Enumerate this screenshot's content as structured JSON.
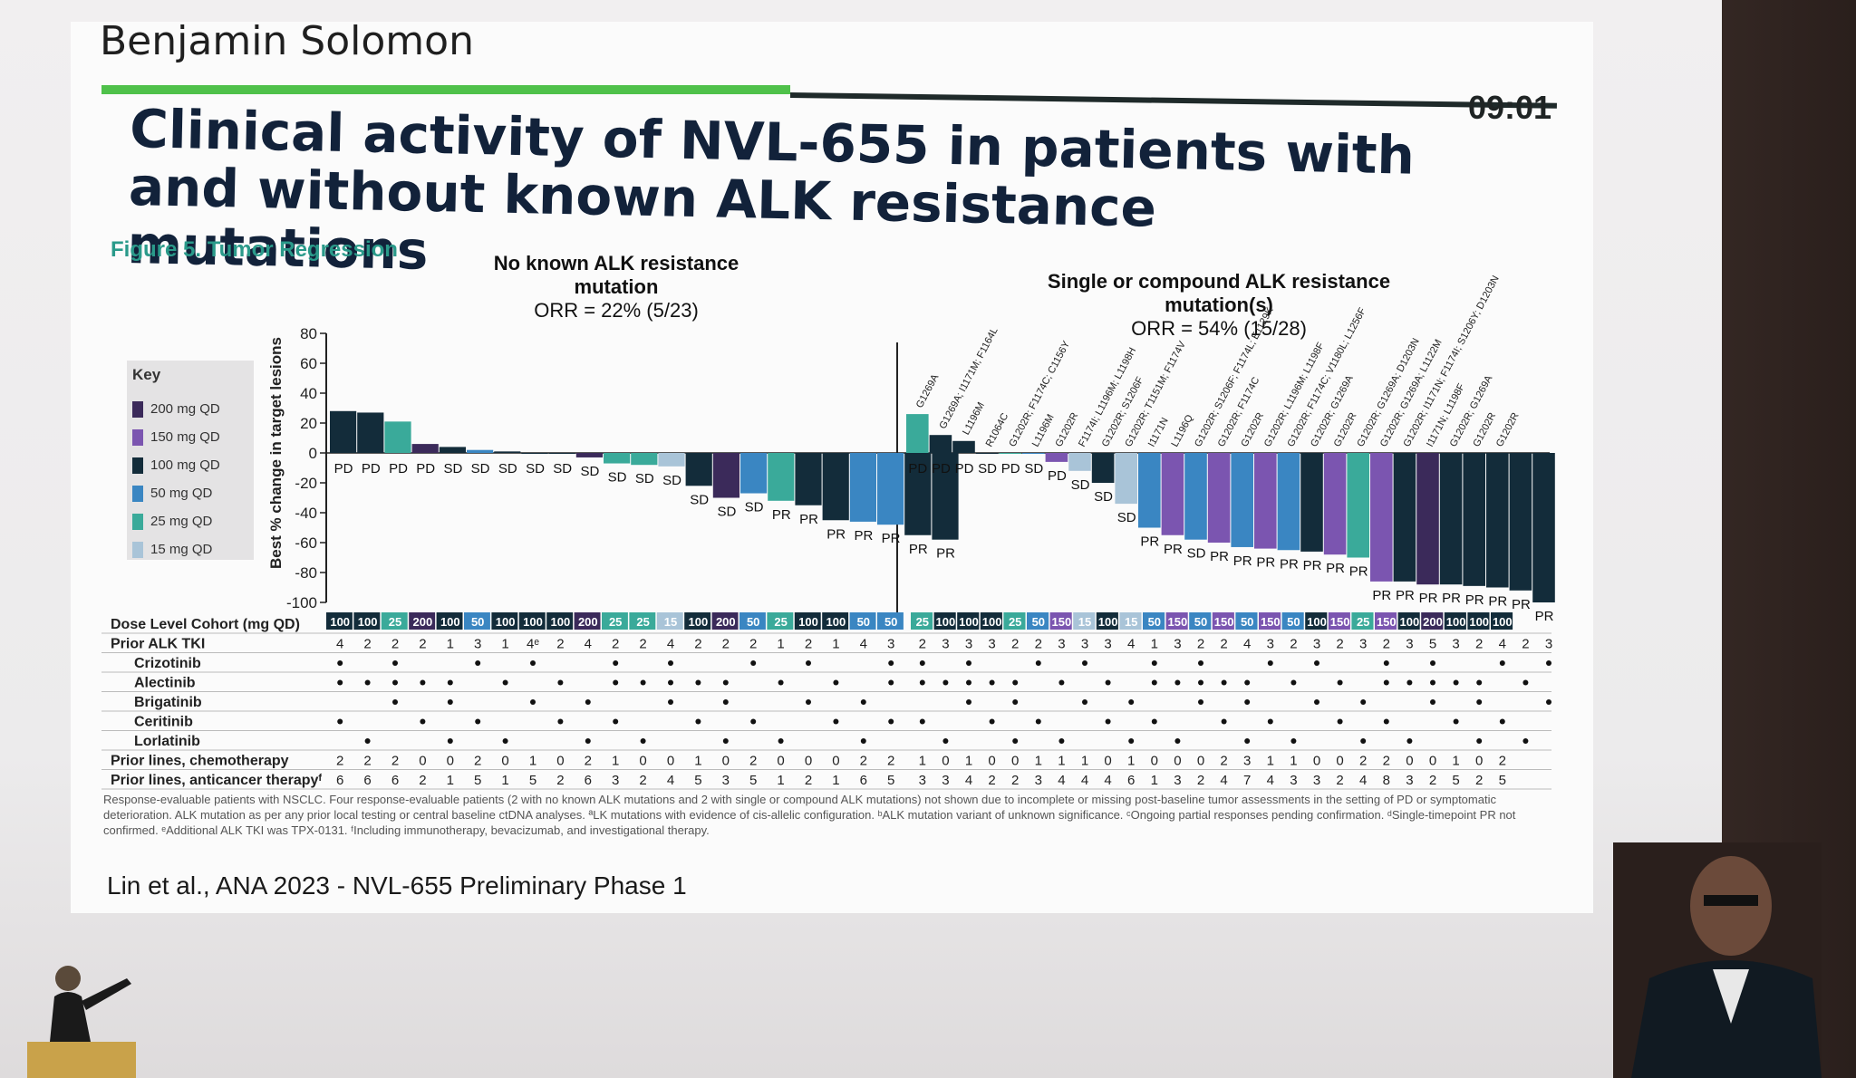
{
  "header": {
    "speaker": "Benjamin Solomon",
    "clock": "09:01"
  },
  "slide": {
    "title": "Clinical activity of NVL-655 in patients with and without known ALK resistance mutations",
    "footnote": "Response-evaluable patients with NSCLC. Four response-evaluable patients (2 with no known ALK mutations and 2 with single or compound ALK mutations) not shown due to incomplete or missing post-baseline tumor assessments in the setting of PD or symptomatic deterioration. ALK mutation as per any prior local testing or central baseline ctDNA analyses. ªLK mutations with evidence of cis-allelic configuration. ᵇALK mutation variant of unknown significance. ᶜOngoing partial responses pending confirmation. ᵈSingle-timepoint PR not confirmed. ᵉAdditional ALK TKI was TPX-0131. ᶠIncluding immunotherapy, bevacizumab, and investigational therapy.",
    "citation": "Lin et al., ANA 2023 - NVL-655 Preliminary Phase 1"
  },
  "chart_data": {
    "type": "bar",
    "title": "Figure 5. Tumor Regression",
    "ylabel": "Best % change in target lesions",
    "ylim": [
      -100,
      80
    ],
    "yticks": [
      80,
      60,
      40,
      20,
      0,
      -20,
      -40,
      -60,
      -80,
      -100
    ],
    "legend_title": "Key",
    "legend": [
      {
        "label": "200 mg QD",
        "dose": "200",
        "color": "#3b2a5a"
      },
      {
        "label": "150 mg QD",
        "dose": "150",
        "color": "#7b55b0"
      },
      {
        "label": "100 mg QD",
        "dose": "100",
        "color": "#132c3a"
      },
      {
        "label": "50 mg QD",
        "dose": "50",
        "color": "#3a86c2"
      },
      {
        "label": "25 mg QD",
        "dose": "25",
        "color": "#3aaa9a"
      },
      {
        "label": "15 mg QD",
        "dose": "15",
        "color": "#a9c4d8"
      }
    ],
    "groups": [
      {
        "label": "No known ALK resistance mutation",
        "orr": "ORR = 22% (5/23)",
        "values": [
          28,
          27,
          21,
          6,
          4,
          2,
          1,
          0,
          0,
          -3,
          -7,
          -8,
          -9,
          -22,
          -30,
          -27,
          -32,
          -35,
          -45,
          -46,
          -48,
          -55,
          -58
        ],
        "response": [
          "PD",
          "PD",
          "PD",
          "PD",
          "SD",
          "SD",
          "SD",
          "SD",
          "SD",
          "SD",
          "SD",
          "SD",
          "SD",
          "SD",
          "SD",
          "SD",
          "PR",
          "PR",
          "PR",
          "PR",
          "PR",
          "PR",
          "PR"
        ],
        "dose": [
          "100",
          "100",
          "25",
          "200",
          "100",
          "50",
          "100",
          "100",
          "100",
          "200",
          "25",
          "25",
          "15",
          "100",
          "200",
          "50",
          "25",
          "100",
          "100",
          "50",
          "50",
          "",
          ""
        ]
      },
      {
        "label": "Single or compound ALK resistance mutation(s)",
        "orr": "ORR = 54% (15/28)",
        "mutations": [
          "G1269A",
          "G1269A; I1171M; F1164L",
          "L1196M",
          "R1064C",
          "G1202R; F1174C; C1156Y",
          "L1196M",
          "G1202R",
          "F1174I; L1196M; L1198H",
          "G1202R; S1206F",
          "G1202R; T1151M; F1174V",
          "I1171N",
          "L1196Q",
          "G1202R; S1206F; F1174L; E1129K",
          "G1202R; F1174C",
          "G1202R",
          "G1202R; L1196M; L1198F",
          "G1202R; F1174C; V1180L; L1256F",
          "G1202R; G1269A",
          "G1202R",
          "G1202R; G1269A; D1203N",
          "G1202R; G1269A; L1122M",
          "G1202R; I1171N; F1174I; S1206Y; D1203N",
          "I1171N; L1198F",
          "G1202R; G1269A",
          "G1202R",
          "G1202R",
          "",
          ""
        ],
        "values": [
          26,
          12,
          8,
          0,
          0,
          0,
          -6,
          -12,
          -20,
          -34,
          -50,
          -55,
          -58,
          -60,
          -63,
          -64,
          -65,
          -66,
          -68,
          -70,
          -86,
          -86,
          -88,
          -88,
          -89,
          -90,
          -92,
          -100
        ],
        "response": [
          "PD",
          "PD",
          "PD",
          "SD",
          "PD",
          "SD",
          "PD",
          "SD",
          "SD",
          "SD",
          "PR",
          "PR",
          "SD",
          "PR",
          "PR",
          "PR",
          "PR",
          "PR",
          "PR",
          "PR",
          "PR",
          "PR",
          "PR",
          "PR",
          "PR",
          "PR",
          "PR",
          "PR"
        ],
        "dose": [
          "25",
          "100",
          "100",
          "100",
          "25",
          "50",
          "150",
          "15",
          "100",
          "15",
          "50",
          "150",
          "50",
          "150",
          "50",
          "150",
          "50",
          "100",
          "150",
          "25",
          "150",
          "100",
          "200",
          "100",
          "100",
          "100",
          "",
          ""
        ]
      }
    ],
    "table": {
      "row_labels": [
        "Dose Level Cohort (mg QD)",
        "Prior ALK TKI",
        "Crizotinib",
        "Alectinib",
        "Brigatinib",
        "Ceritinib",
        "Lorlatinib",
        "Prior lines, chemotherapy",
        "Prior lines, anticancer therapyᶠ"
      ],
      "left": {
        "prior_alk_tki": [
          "4",
          "2",
          "2",
          "2",
          "1",
          "3",
          "1",
          "4ᵉ",
          "2",
          "4",
          "2",
          "2",
          "4",
          "2",
          "2",
          "2",
          "1",
          "2",
          "1",
          "4",
          "3"
        ],
        "chemo": [
          "2",
          "2",
          "2",
          "0",
          "0",
          "2",
          "0",
          "1",
          "0",
          "2",
          "1",
          "0",
          "0",
          "1",
          "0",
          "2",
          "0",
          "0",
          "0",
          "2",
          "2"
        ],
        "anticancer": [
          "6",
          "6",
          "6",
          "2",
          "1",
          "5",
          "1",
          "5",
          "2",
          "6",
          "3",
          "2",
          "4",
          "5",
          "3",
          "5",
          "1",
          "2",
          "1",
          "6",
          "5"
        ]
      },
      "right": {
        "prior_alk_tki": [
          "2",
          "3",
          "3",
          "3",
          "2",
          "2",
          "3",
          "3",
          "3",
          "4",
          "1",
          "3",
          "2",
          "2",
          "4",
          "3",
          "2",
          "3",
          "2",
          "3",
          "2",
          "3",
          "5",
          "3",
          "2",
          "4",
          "2",
          "3"
        ],
        "chemo": [
          "1",
          "0",
          "1",
          "0",
          "0",
          "1",
          "1",
          "1",
          "0",
          "1",
          "0",
          "0",
          "0",
          "2",
          "3",
          "1",
          "1",
          "0",
          "0",
          "2",
          "2",
          "0",
          "0",
          "1",
          "0",
          "2",
          "",
          ""
        ],
        "anticancer": [
          "3",
          "3",
          "4",
          "2",
          "2",
          "3",
          "4",
          "4",
          "4",
          "6",
          "1",
          "3",
          "2",
          "4",
          "7",
          "4",
          "3",
          "3",
          "2",
          "4",
          "8",
          "3",
          "2",
          "5",
          "2",
          "5",
          "",
          ""
        ]
      }
    }
  }
}
